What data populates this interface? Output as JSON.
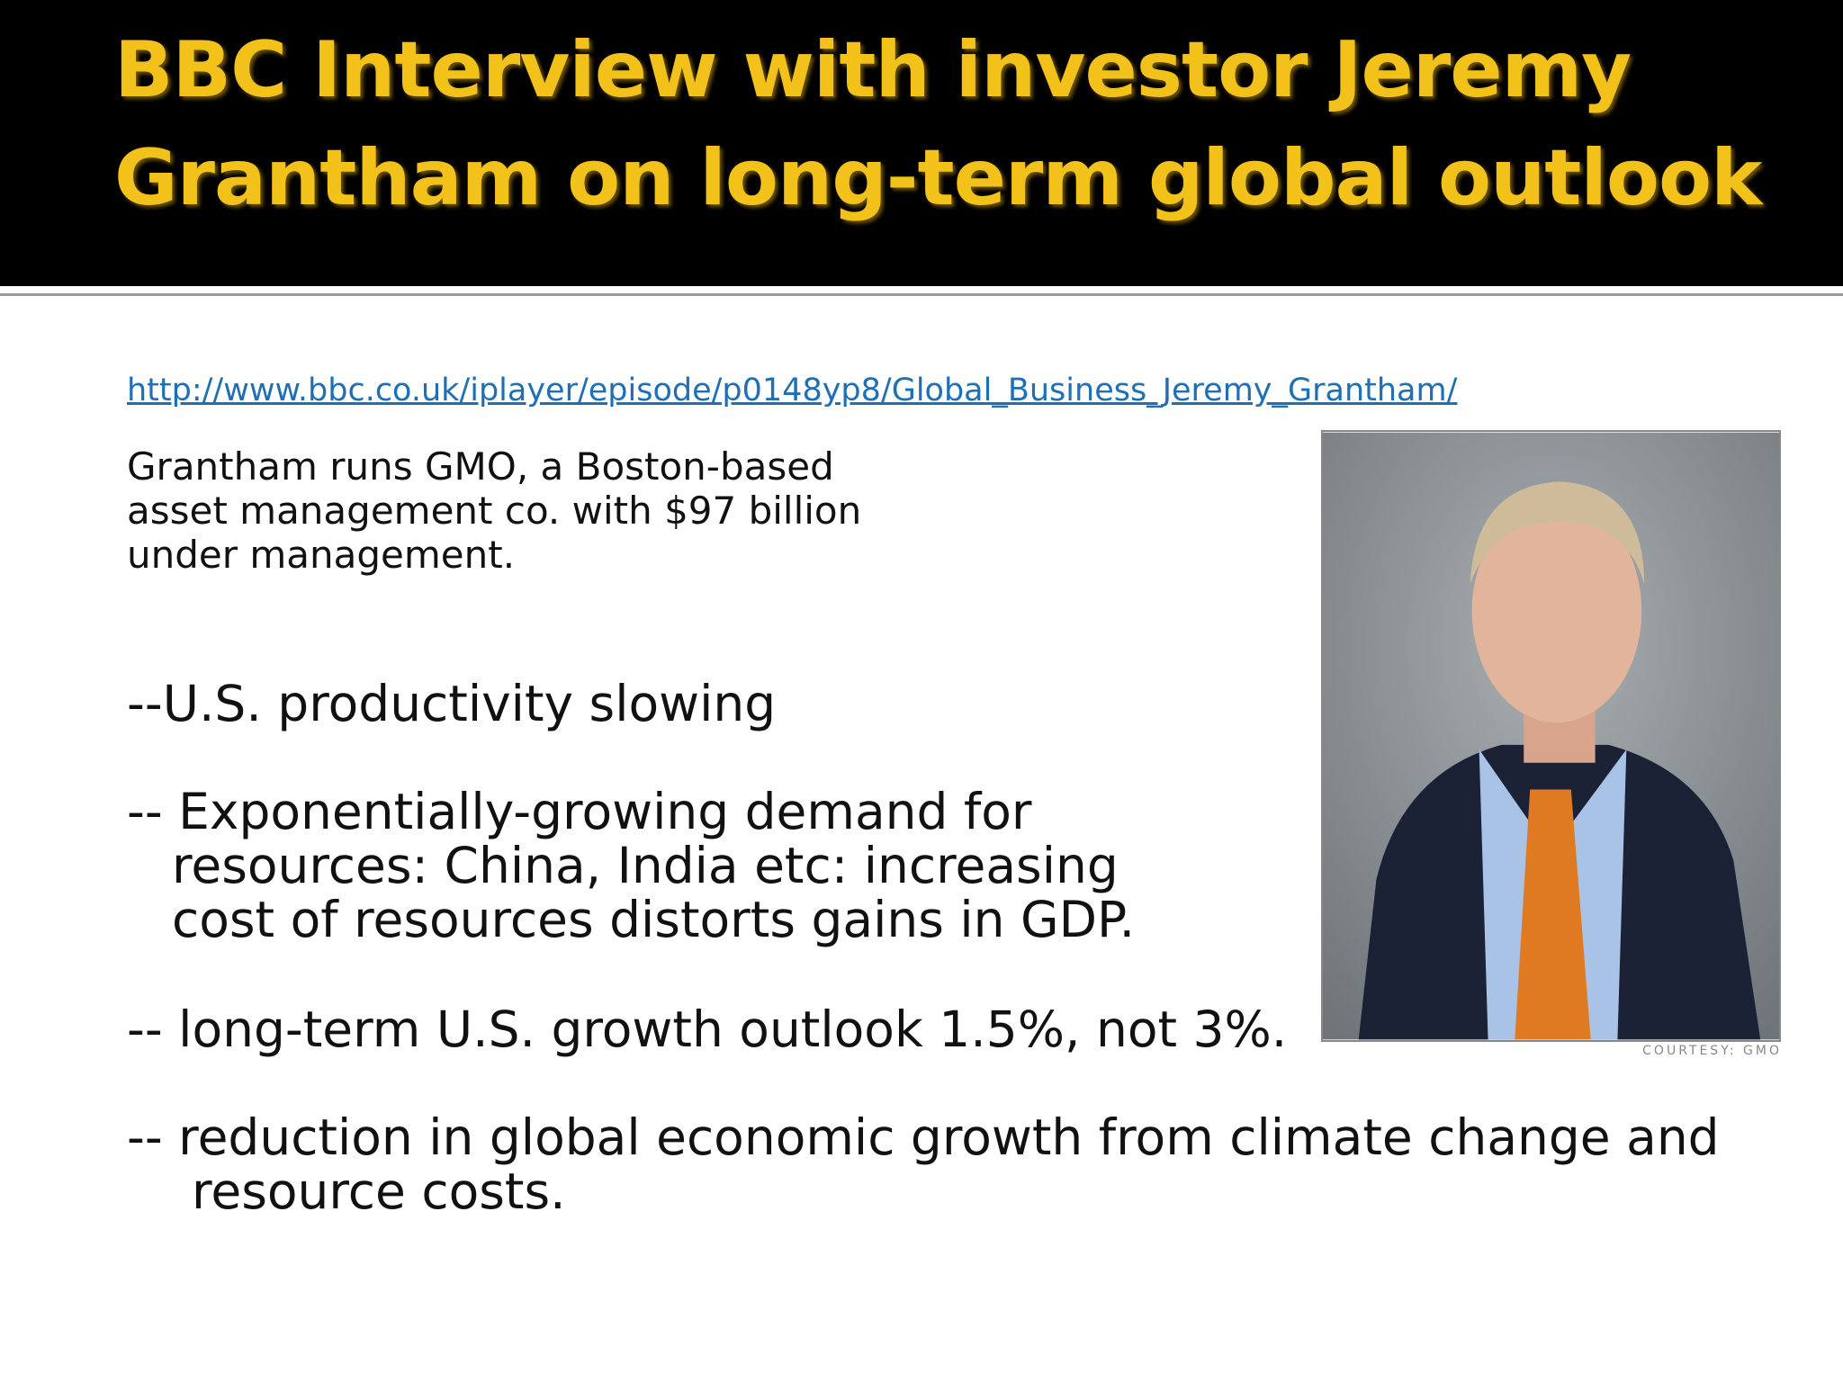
{
  "header": {
    "title_lines": [
      "BBC Interview with investor Jeremy",
      "Grantham on long-term global outlook"
    ]
  },
  "link": "http://www.bbc.co.uk/iplayer/episode/p0148yp8/Global_Business_Jeremy_Grantham/",
  "description_lines": [
    "Grantham runs GMO, a Boston-based",
    "asset management co. with $97 billion",
    "under management."
  ],
  "bullets": [
    {
      "lines": [
        "--U.S. productivity slowing"
      ]
    },
    {
      "lines": [
        "-- Exponentially-growing demand for",
        "resources: China, India etc: increasing",
        "cost of resources distorts gains in GDP."
      ]
    },
    {
      "lines": [
        "-- long-term U.S. growth outlook 1.5%, not 3%."
      ]
    },
    {
      "lines": [
        "-- reduction in global economic growth from climate change and",
        "resource costs."
      ]
    }
  ],
  "photo": {
    "caption": "COURTESY: GMO"
  }
}
